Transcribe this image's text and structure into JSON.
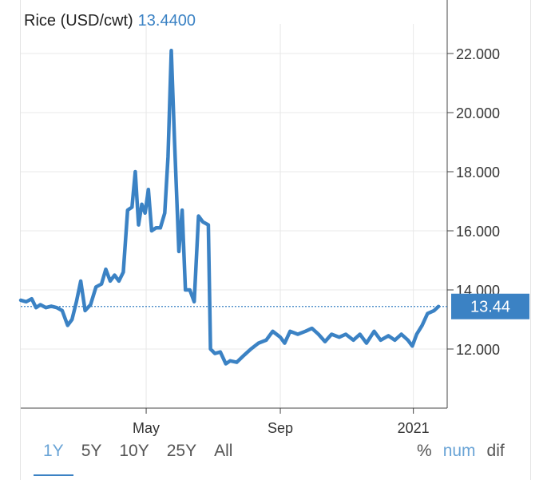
{
  "header": {
    "title": "Rice (USD/cwt)",
    "value": "13.4400"
  },
  "last_value_label": "13.44",
  "range_buttons": [
    {
      "label": "1Y",
      "active": true
    },
    {
      "label": "5Y",
      "active": false
    },
    {
      "label": "10Y",
      "active": false
    },
    {
      "label": "25Y",
      "active": false
    },
    {
      "label": "All",
      "active": false
    }
  ],
  "mode_buttons": [
    {
      "label": "%",
      "active": false
    },
    {
      "label": "num",
      "active": true
    },
    {
      "label": "dif",
      "active": false
    }
  ],
  "colors": {
    "line": "#3b82c4",
    "accent": "#3b82c4",
    "grid": "#e8e8e8"
  },
  "chart_data": {
    "type": "line",
    "title": "Rice (USD/cwt)",
    "xlabel": "",
    "ylabel": "",
    "x_ticks": [
      {
        "label": "May",
        "x": "2020-05-01"
      },
      {
        "label": "Sep",
        "x": "2020-09-01"
      },
      {
        "label": "2021",
        "x": "2021-01-01"
      }
    ],
    "y_ticks": [
      "12.000",
      "14.000",
      "16.000",
      "18.000",
      "20.000",
      "22.000"
    ],
    "ylim": [
      10.0,
      23.0
    ],
    "xlim": [
      "2020-01-07",
      "2021-02-01"
    ],
    "grid": true,
    "last_value": 13.44,
    "series": [
      {
        "points": [
          [
            "2020-01-07",
            13.65
          ],
          [
            "2020-01-12",
            13.6
          ],
          [
            "2020-01-17",
            13.7
          ],
          [
            "2020-01-21",
            13.4
          ],
          [
            "2020-01-25",
            13.5
          ],
          [
            "2020-01-30",
            13.4
          ],
          [
            "2020-02-04",
            13.45
          ],
          [
            "2020-02-09",
            13.4
          ],
          [
            "2020-02-14",
            13.3
          ],
          [
            "2020-02-19",
            12.8
          ],
          [
            "2020-02-23",
            13.0
          ],
          [
            "2020-02-27",
            13.6
          ],
          [
            "2020-03-02",
            14.3
          ],
          [
            "2020-03-06",
            13.3
          ],
          [
            "2020-03-11",
            13.5
          ],
          [
            "2020-03-16",
            14.1
          ],
          [
            "2020-03-21",
            14.2
          ],
          [
            "2020-03-25",
            14.7
          ],
          [
            "2020-03-29",
            14.3
          ],
          [
            "2020-04-02",
            14.5
          ],
          [
            "2020-04-06",
            14.3
          ],
          [
            "2020-04-10",
            14.6
          ],
          [
            "2020-04-14",
            16.7
          ],
          [
            "2020-04-18",
            16.8
          ],
          [
            "2020-04-21",
            18.0
          ],
          [
            "2020-04-24",
            16.2
          ],
          [
            "2020-04-27",
            16.9
          ],
          [
            "2020-04-30",
            16.6
          ],
          [
            "2020-05-03",
            17.4
          ],
          [
            "2020-05-06",
            16.0
          ],
          [
            "2020-05-10",
            16.1
          ],
          [
            "2020-05-14",
            16.1
          ],
          [
            "2020-05-18",
            16.6
          ],
          [
            "2020-05-21",
            18.5
          ],
          [
            "2020-05-24",
            22.1
          ],
          [
            "2020-05-27",
            19.0
          ],
          [
            "2020-05-31",
            15.3
          ],
          [
            "2020-06-03",
            16.7
          ],
          [
            "2020-06-06",
            14.0
          ],
          [
            "2020-06-10",
            14.0
          ],
          [
            "2020-06-14",
            13.6
          ],
          [
            "2020-06-18",
            16.5
          ],
          [
            "2020-06-22",
            16.3
          ],
          [
            "2020-06-27",
            16.2
          ],
          [
            "2020-06-29",
            12.0
          ],
          [
            "2020-07-03",
            11.85
          ],
          [
            "2020-07-08",
            11.9
          ],
          [
            "2020-07-13",
            11.5
          ],
          [
            "2020-07-17",
            11.6
          ],
          [
            "2020-07-23",
            11.55
          ],
          [
            "2020-07-30",
            11.8
          ],
          [
            "2020-08-05",
            12.0
          ],
          [
            "2020-08-12",
            12.2
          ],
          [
            "2020-08-19",
            12.3
          ],
          [
            "2020-08-25",
            12.6
          ],
          [
            "2020-09-01",
            12.4
          ],
          [
            "2020-09-05",
            12.2
          ],
          [
            "2020-09-10",
            12.6
          ],
          [
            "2020-09-17",
            12.5
          ],
          [
            "2020-09-24",
            12.6
          ],
          [
            "2020-09-30",
            12.7
          ],
          [
            "2020-10-06",
            12.5
          ],
          [
            "2020-10-12",
            12.25
          ],
          [
            "2020-10-18",
            12.5
          ],
          [
            "2020-10-25",
            12.4
          ],
          [
            "2020-10-31",
            12.5
          ],
          [
            "2020-11-07",
            12.3
          ],
          [
            "2020-11-13",
            12.5
          ],
          [
            "2020-11-19",
            12.2
          ],
          [
            "2020-11-26",
            12.6
          ],
          [
            "2020-12-02",
            12.3
          ],
          [
            "2020-12-09",
            12.45
          ],
          [
            "2020-12-15",
            12.3
          ],
          [
            "2020-12-21",
            12.5
          ],
          [
            "2020-12-27",
            12.3
          ],
          [
            "2020-12-31",
            12.1
          ],
          [
            "2021-01-04",
            12.5
          ],
          [
            "2021-01-09",
            12.8
          ],
          [
            "2021-01-14",
            13.2
          ],
          [
            "2021-01-20",
            13.3
          ],
          [
            "2021-01-24",
            13.44
          ]
        ]
      }
    ]
  }
}
